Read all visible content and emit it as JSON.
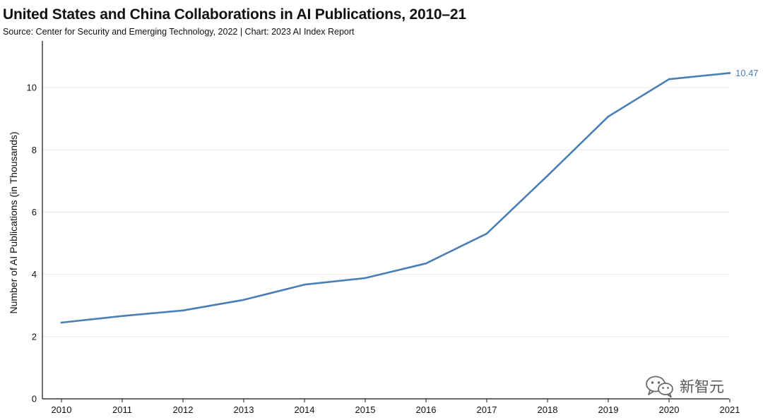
{
  "chart_data": {
    "type": "line",
    "title": "United States and China Collaborations in AI Publications, 2010–21",
    "subtitle": "Source: Center for Security and Emerging Technology, 2022 | Chart: 2023 AI Index Report",
    "ylabel": "Number of AI Publications (in Thousands)",
    "xlabel": "",
    "x": [
      "2010",
      "2011",
      "2012",
      "2013",
      "2014",
      "2015",
      "2016",
      "2017",
      "2018",
      "2019",
      "2020",
      "2021"
    ],
    "series": [
      {
        "values": [
          2.45,
          2.66,
          2.84,
          3.18,
          3.67,
          3.88,
          4.35,
          5.31,
          7.17,
          9.07,
          10.27,
          10.47
        ],
        "color": "#4a7fb5",
        "end_label": "10.47"
      }
    ],
    "yticks": [
      "0",
      "2",
      "4",
      "6",
      "8",
      "10"
    ],
    "ylim": [
      0,
      11.5
    ],
    "grid": true,
    "legend": "none"
  },
  "watermark": {
    "icon": "wechat-icon",
    "text": "新智元"
  }
}
